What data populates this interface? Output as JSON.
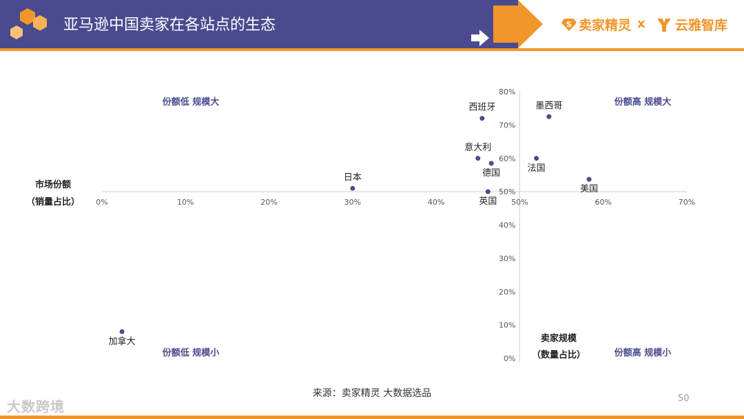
{
  "header": {
    "title": "亚马逊中国卖家在各站点的生态",
    "brand_left": "卖家精灵",
    "brand_x": "x",
    "brand_right": "云雅智库",
    "colors": {
      "band": "#4a4b8f",
      "accent": "#f0962a"
    }
  },
  "chart_data": {
    "type": "scatter",
    "xlabel": [
      "市场份额",
      "（销量占比）"
    ],
    "ylabel": [
      "卖家规模",
      "（数量占比）"
    ],
    "xlim": [
      0,
      0.7
    ],
    "ylim": [
      0,
      0.8
    ],
    "x_ticks": [
      0,
      0.1,
      0.2,
      0.3,
      0.4,
      0.5,
      0.6,
      0.7
    ],
    "x_tick_labels": [
      "0%",
      "10%",
      "20%",
      "30%",
      "40%",
      "50%",
      "60%",
      "70%"
    ],
    "y_ticks": [
      0,
      0.1,
      0.2,
      0.3,
      0.4,
      0.5,
      0.6,
      0.7,
      0.8
    ],
    "y_tick_labels": [
      "0%",
      "10%",
      "20%",
      "30%",
      "40%",
      "50%",
      "60%",
      "70%",
      "80%"
    ],
    "x_axis_crosses_y": 0.5,
    "y_axis_crosses_x": 0.5,
    "grid": false,
    "point_color": "#4a4b8f",
    "points": [
      {
        "label": "西班牙",
        "x": 0.455,
        "y": 0.72,
        "label_pos": "above"
      },
      {
        "label": "墨西哥",
        "x": 0.535,
        "y": 0.725,
        "label_pos": "above"
      },
      {
        "label": "意大利",
        "x": 0.45,
        "y": 0.6,
        "label_pos": "above"
      },
      {
        "label": "德国",
        "x": 0.466,
        "y": 0.585,
        "label_pos": "below"
      },
      {
        "label": "法国",
        "x": 0.52,
        "y": 0.6,
        "label_pos": "below"
      },
      {
        "label": "日本",
        "x": 0.3,
        "y": 0.51,
        "label_pos": "above"
      },
      {
        "label": "美国",
        "x": 0.583,
        "y": 0.537,
        "label_pos": "below"
      },
      {
        "label": "英国",
        "x": 0.462,
        "y": 0.5,
        "label_pos": "below"
      },
      {
        "label": "加拿大",
        "x": 0.024,
        "y": 0.08,
        "label_pos": "below"
      }
    ],
    "quadrant_labels": {
      "top_left": "份额低 规模大",
      "top_right": "份额高 规模大",
      "bottom_left": "份额低 规模小",
      "bottom_right": "份额高 规模小"
    }
  },
  "source": "来源：卖家精灵 大数据选品",
  "page_number": "50",
  "watermark": "大数跨境"
}
